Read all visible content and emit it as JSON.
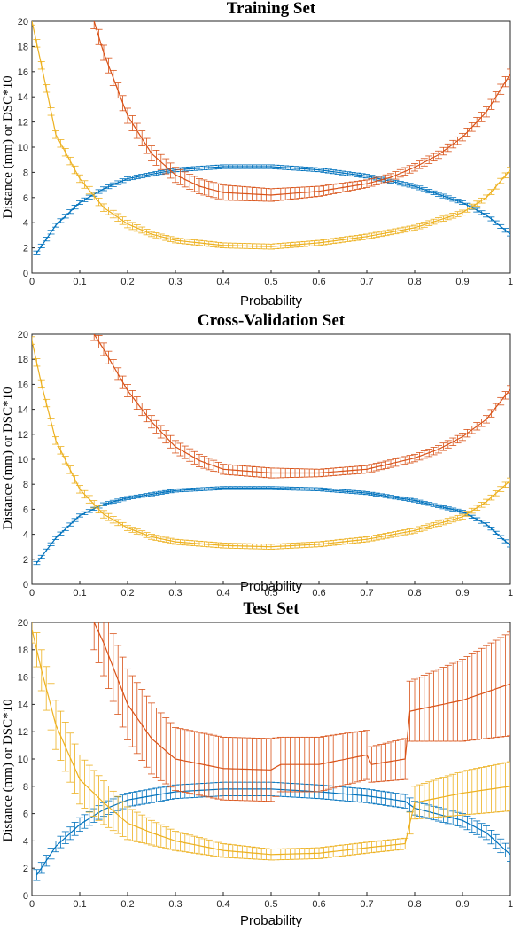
{
  "colors": {
    "dsc": "#0072BD",
    "dist1": "#D95319",
    "dist2": "#EDB120",
    "axis": "#262626"
  },
  "chart_data": [
    {
      "type": "line",
      "title": "Training Set",
      "xlabel": "Probability",
      "ylabel": "Distance (mm) or DSC*10",
      "xlim": [
        0,
        1
      ],
      "ylim": [
        0,
        20
      ],
      "xticks": [
        "0",
        "0.1",
        "0.2",
        "0.3",
        "0.4",
        "0.5",
        "0.6",
        "0.7",
        "0.8",
        "0.9",
        "1"
      ],
      "yticks": [
        "0",
        "2",
        "4",
        "6",
        "8",
        "10",
        "12",
        "14",
        "16",
        "18",
        "20"
      ],
      "grid": false,
      "error_bars": true,
      "series": [
        {
          "color": "#0072BD",
          "x": [
            0.01,
            0.05,
            0.1,
            0.15,
            0.2,
            0.3,
            0.4,
            0.5,
            0.6,
            0.7,
            0.8,
            0.9,
            0.95,
            1.0
          ],
          "y": [
            1.6,
            3.8,
            5.6,
            6.7,
            7.5,
            8.2,
            8.45,
            8.45,
            8.2,
            7.7,
            6.9,
            5.6,
            4.6,
            3.1
          ],
          "err": [
            0.15,
            0.15,
            0.15,
            0.15,
            0.15,
            0.15,
            0.15,
            0.15,
            0.15,
            0.15,
            0.15,
            0.15,
            0.15,
            0.15
          ]
        },
        {
          "color": "#D95319",
          "x": [
            0.13,
            0.15,
            0.2,
            0.25,
            0.3,
            0.35,
            0.4,
            0.5,
            0.6,
            0.7,
            0.75,
            0.8,
            0.85,
            0.9,
            0.95,
            1.0
          ],
          "y": [
            20,
            17.5,
            12.5,
            9.5,
            7.8,
            6.9,
            6.4,
            6.2,
            6.5,
            7.1,
            7.6,
            8.4,
            9.4,
            10.8,
            12.8,
            15.8
          ],
          "err": [
            0.6,
            0.6,
            0.6,
            0.6,
            0.6,
            0.6,
            0.6,
            0.5,
            0.4,
            0.3,
            0.3,
            0.3,
            0.3,
            0.3,
            0.4,
            0.4
          ]
        },
        {
          "color": "#EDB120",
          "x": [
            0.0,
            0.02,
            0.05,
            0.1,
            0.15,
            0.2,
            0.25,
            0.3,
            0.4,
            0.5,
            0.6,
            0.7,
            0.8,
            0.9,
            0.95,
            1.0
          ],
          "y": [
            20,
            16.5,
            11.0,
            7.5,
            5.2,
            3.9,
            3.1,
            2.6,
            2.2,
            2.1,
            2.4,
            2.9,
            3.6,
            4.8,
            6.0,
            8.2
          ],
          "err": [
            0.3,
            0.3,
            0.3,
            0.3,
            0.3,
            0.3,
            0.2,
            0.2,
            0.2,
            0.2,
            0.2,
            0.2,
            0.2,
            0.2,
            0.2,
            0.2
          ]
        }
      ]
    },
    {
      "type": "line",
      "title": "Cross-Validation Set",
      "xlabel": "Probability",
      "ylabel": "Distance (mm) or DSC*10",
      "xlim": [
        0,
        1
      ],
      "ylim": [
        0,
        20
      ],
      "xticks": [
        "0",
        "0.1",
        "0.2",
        "0.3",
        "0.4",
        "0.5",
        "0.6",
        "0.7",
        "0.8",
        "0.9",
        "1"
      ],
      "yticks": [
        "0",
        "2",
        "4",
        "6",
        "8",
        "10",
        "12",
        "14",
        "16",
        "18",
        "20"
      ],
      "grid": false,
      "error_bars": true,
      "series": [
        {
          "color": "#0072BD",
          "x": [
            0.01,
            0.05,
            0.1,
            0.15,
            0.2,
            0.3,
            0.4,
            0.5,
            0.6,
            0.7,
            0.8,
            0.9,
            0.95,
            1.0
          ],
          "y": [
            1.7,
            3.7,
            5.5,
            6.4,
            6.9,
            7.5,
            7.7,
            7.7,
            7.6,
            7.3,
            6.7,
            5.8,
            4.8,
            3.1
          ],
          "err": [
            0.12,
            0.12,
            0.12,
            0.12,
            0.12,
            0.12,
            0.12,
            0.12,
            0.12,
            0.12,
            0.12,
            0.12,
            0.12,
            0.12
          ]
        },
        {
          "color": "#D95319",
          "x": [
            0.13,
            0.15,
            0.2,
            0.25,
            0.3,
            0.35,
            0.4,
            0.5,
            0.6,
            0.7,
            0.8,
            0.85,
            0.9,
            0.95,
            1.0
          ],
          "y": [
            20,
            18.8,
            15.5,
            13.0,
            11.0,
            9.9,
            9.2,
            8.9,
            8.9,
            9.2,
            10.1,
            10.8,
            11.8,
            13.2,
            15.6
          ],
          "err": [
            0.5,
            0.5,
            0.5,
            0.5,
            0.5,
            0.5,
            0.4,
            0.4,
            0.3,
            0.3,
            0.3,
            0.3,
            0.3,
            0.3,
            0.3
          ]
        },
        {
          "color": "#EDB120",
          "x": [
            0.0,
            0.02,
            0.05,
            0.1,
            0.15,
            0.2,
            0.25,
            0.3,
            0.4,
            0.5,
            0.6,
            0.7,
            0.8,
            0.9,
            0.95,
            1.0
          ],
          "y": [
            19.5,
            16.0,
            11.5,
            7.6,
            5.6,
            4.5,
            3.8,
            3.4,
            3.1,
            3.0,
            3.2,
            3.6,
            4.3,
            5.4,
            6.6,
            8.3
          ],
          "err": [
            0.3,
            0.3,
            0.3,
            0.3,
            0.3,
            0.2,
            0.2,
            0.2,
            0.2,
            0.2,
            0.2,
            0.2,
            0.2,
            0.2,
            0.2,
            0.2
          ]
        }
      ]
    },
    {
      "type": "line",
      "title": "Test Set",
      "xlabel": "Probability",
      "ylabel": "Distance (mm) or DSC*10",
      "xlim": [
        0,
        1
      ],
      "ylim": [
        0,
        20
      ],
      "xticks": [
        "0",
        "0.1",
        "0.2",
        "0.3",
        "0.4",
        "0.5",
        "0.6",
        "0.7",
        "0.8",
        "0.9",
        "1"
      ],
      "yticks": [
        "0",
        "2",
        "4",
        "6",
        "8",
        "10",
        "12",
        "14",
        "16",
        "18",
        "20"
      ],
      "grid": false,
      "error_bars": true,
      "series": [
        {
          "color": "#0072BD",
          "x": [
            0.01,
            0.05,
            0.1,
            0.15,
            0.2,
            0.3,
            0.4,
            0.5,
            0.6,
            0.7,
            0.78,
            0.8,
            0.9,
            0.95,
            1.0
          ],
          "y": [
            1.5,
            3.6,
            5.2,
            6.3,
            7.0,
            7.6,
            7.8,
            7.8,
            7.6,
            7.3,
            6.9,
            6.4,
            5.5,
            4.6,
            3.0
          ],
          "err": [
            0.4,
            0.4,
            0.5,
            0.5,
            0.5,
            0.5,
            0.5,
            0.5,
            0.5,
            0.5,
            0.5,
            0.5,
            0.5,
            0.5,
            0.5
          ]
        },
        {
          "color": "#D95319",
          "x": [
            0.13,
            0.15,
            0.2,
            0.25,
            0.3,
            0.4,
            0.5,
            0.52,
            0.6,
            0.7,
            0.71,
            0.78,
            0.79,
            0.9,
            1.0
          ],
          "y": [
            20,
            18.5,
            14.0,
            11.5,
            10.0,
            9.3,
            9.2,
            9.6,
            9.6,
            10.3,
            9.6,
            10.0,
            13.5,
            14.3,
            15.5
          ],
          "err": [
            2.0,
            2.4,
            2.6,
            2.6,
            2.3,
            2.3,
            2.3,
            2.0,
            2.0,
            1.8,
            1.3,
            1.5,
            2.2,
            3.0,
            3.8
          ]
        },
        {
          "color": "#EDB120",
          "x": [
            0.0,
            0.02,
            0.05,
            0.1,
            0.15,
            0.2,
            0.25,
            0.3,
            0.4,
            0.5,
            0.6,
            0.7,
            0.78,
            0.8,
            0.9,
            1.0
          ],
          "y": [
            19.5,
            16.5,
            12.5,
            8.5,
            6.8,
            5.3,
            4.6,
            4.0,
            3.3,
            3.0,
            3.1,
            3.5,
            3.8,
            6.8,
            7.5,
            8.0
          ],
          "err": [
            1.0,
            1.5,
            1.8,
            1.8,
            1.6,
            1.2,
            0.9,
            0.7,
            0.5,
            0.4,
            0.4,
            0.4,
            0.4,
            1.2,
            1.6,
            1.8
          ]
        }
      ]
    }
  ]
}
